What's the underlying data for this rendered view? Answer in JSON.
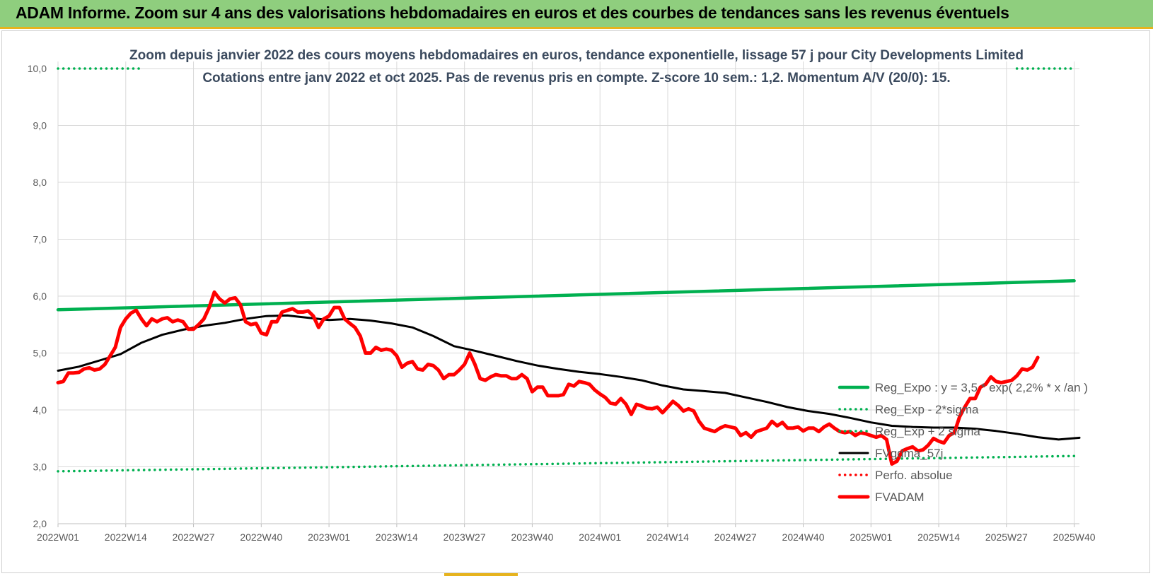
{
  "header": {
    "title": "ADAM Informe. Zoom sur 4 ans des valorisations hebdomadaires en euros et des courbes de tendances sans les revenus éventuels"
  },
  "colors": {
    "header_bg": "#8fce7e",
    "accent_border": "#e6b31e",
    "reg_expo": "#00b050",
    "sigma": "#00b050",
    "fvgdma": "#000000",
    "perfo": "#ff0000",
    "fvadam": "#ff0000"
  },
  "chart_data": {
    "type": "line",
    "title": "Zoom depuis janvier 2022 des cours moyens hebdomadaires en euros, tendance exponentielle, lissage 57 j pour City Developments Limited",
    "subtitle": "Cotations entre janv 2022 et oct 2025. Pas de revenus pris en compte. Z-score 10 sem.: 1,2. Momentum A/V (20/0): 15.",
    "xlabel": "",
    "ylabel": "",
    "ylim": [
      2,
      10
    ],
    "yticks": [
      "2,0",
      "3,0",
      "4,0",
      "5,0",
      "6,0",
      "7,0",
      "8,0",
      "9,0",
      "10,0"
    ],
    "x_tick_labels": [
      "2022W01",
      "2022W14",
      "2022W27",
      "2022W40",
      "2023W01",
      "2023W14",
      "2023W27",
      "2023W40",
      "2024W01",
      "2024W14",
      "2024W27",
      "2024W40",
      "2025W01",
      "2025W14",
      "2025W27",
      "2025W40"
    ],
    "weeks_total": 196,
    "grid": true,
    "legend_position": "bottom-right",
    "series": [
      {
        "name": "Reg_Expo : y = 3,5 * exp( 2,2% * x /an )",
        "style": "solid-thick",
        "color": "#00b050",
        "points": [
          [
            0,
            5.76
          ],
          [
            195,
            6.27
          ]
        ]
      },
      {
        "name": "Reg_Exp - 2*sigma",
        "style": "dotted",
        "color": "#00b050",
        "points": [
          [
            0,
            2.92
          ],
          [
            195,
            3.19
          ]
        ]
      },
      {
        "name": "Reg_Exp + 2 sigma",
        "style": "dotted",
        "color": "#00b050",
        "points": [
          [
            0,
            10.0
          ],
          [
            16,
            10.0
          ]
        ],
        "points2": [
          [
            184,
            10.0
          ],
          [
            195,
            10.0
          ]
        ]
      },
      {
        "name": "FVgdma_57j",
        "style": "solid",
        "color": "#000000",
        "points": [
          [
            0,
            4.69
          ],
          [
            4,
            4.76
          ],
          [
            8,
            4.87
          ],
          [
            12,
            4.98
          ],
          [
            16,
            5.18
          ],
          [
            20,
            5.32
          ],
          [
            24,
            5.41
          ],
          [
            28,
            5.48
          ],
          [
            32,
            5.53
          ],
          [
            36,
            5.6
          ],
          [
            40,
            5.65
          ],
          [
            44,
            5.66
          ],
          [
            48,
            5.62
          ],
          [
            52,
            5.58
          ],
          [
            56,
            5.6
          ],
          [
            60,
            5.57
          ],
          [
            64,
            5.52
          ],
          [
            68,
            5.45
          ],
          [
            72,
            5.3
          ],
          [
            76,
            5.12
          ],
          [
            80,
            5.04
          ],
          [
            84,
            4.95
          ],
          [
            88,
            4.86
          ],
          [
            92,
            4.78
          ],
          [
            96,
            4.72
          ],
          [
            100,
            4.67
          ],
          [
            104,
            4.63
          ],
          [
            108,
            4.58
          ],
          [
            112,
            4.52
          ],
          [
            116,
            4.43
          ],
          [
            120,
            4.36
          ],
          [
            124,
            4.33
          ],
          [
            128,
            4.3
          ],
          [
            132,
            4.22
          ],
          [
            136,
            4.14
          ],
          [
            140,
            4.05
          ],
          [
            144,
            3.98
          ],
          [
            148,
            3.93
          ],
          [
            152,
            3.86
          ],
          [
            156,
            3.78
          ],
          [
            160,
            3.72
          ],
          [
            164,
            3.7
          ],
          [
            168,
            3.69
          ],
          [
            172,
            3.69
          ],
          [
            176,
            3.67
          ],
          [
            180,
            3.63
          ],
          [
            184,
            3.58
          ],
          [
            188,
            3.52
          ],
          [
            192,
            3.48
          ],
          [
            196,
            3.51
          ]
        ]
      },
      {
        "name": "Perfo. absolue",
        "style": "dotted",
        "color": "#ff0000",
        "points": []
      },
      {
        "name": "FVADAM",
        "style": "solid-thick",
        "color": "#ff0000",
        "points": [
          [
            0,
            4.48
          ],
          [
            1,
            4.5
          ],
          [
            2,
            4.65
          ],
          [
            3,
            4.65
          ],
          [
            4,
            4.66
          ],
          [
            5,
            4.72
          ],
          [
            6,
            4.74
          ],
          [
            7,
            4.7
          ],
          [
            8,
            4.72
          ],
          [
            9,
            4.8
          ],
          [
            10,
            4.95
          ],
          [
            11,
            5.1
          ],
          [
            12,
            5.45
          ],
          [
            13,
            5.6
          ],
          [
            14,
            5.7
          ],
          [
            15,
            5.75
          ],
          [
            16,
            5.6
          ],
          [
            17,
            5.48
          ],
          [
            18,
            5.6
          ],
          [
            19,
            5.55
          ],
          [
            20,
            5.6
          ],
          [
            21,
            5.62
          ],
          [
            22,
            5.55
          ],
          [
            23,
            5.58
          ],
          [
            24,
            5.55
          ],
          [
            25,
            5.42
          ],
          [
            26,
            5.42
          ],
          [
            27,
            5.5
          ],
          [
            28,
            5.6
          ],
          [
            29,
            5.8
          ],
          [
            30,
            6.07
          ],
          [
            31,
            5.95
          ],
          [
            32,
            5.88
          ],
          [
            33,
            5.95
          ],
          [
            34,
            5.97
          ],
          [
            35,
            5.85
          ],
          [
            36,
            5.55
          ],
          [
            37,
            5.5
          ],
          [
            38,
            5.52
          ],
          [
            39,
            5.35
          ],
          [
            40,
            5.32
          ],
          [
            41,
            5.55
          ],
          [
            42,
            5.55
          ],
          [
            43,
            5.72
          ],
          [
            44,
            5.75
          ],
          [
            45,
            5.78
          ],
          [
            46,
            5.72
          ],
          [
            47,
            5.72
          ],
          [
            48,
            5.74
          ],
          [
            49,
            5.65
          ],
          [
            50,
            5.45
          ],
          [
            51,
            5.6
          ],
          [
            52,
            5.65
          ],
          [
            53,
            5.8
          ],
          [
            54,
            5.8
          ],
          [
            55,
            5.6
          ],
          [
            56,
            5.52
          ],
          [
            57,
            5.45
          ],
          [
            58,
            5.3
          ],
          [
            59,
            5.0
          ],
          [
            60,
            5.0
          ],
          [
            61,
            5.1
          ],
          [
            62,
            5.05
          ],
          [
            63,
            5.07
          ],
          [
            64,
            5.05
          ],
          [
            65,
            4.95
          ],
          [
            66,
            4.75
          ],
          [
            67,
            4.82
          ],
          [
            68,
            4.85
          ],
          [
            69,
            4.72
          ],
          [
            70,
            4.7
          ],
          [
            71,
            4.8
          ],
          [
            72,
            4.78
          ],
          [
            73,
            4.7
          ],
          [
            74,
            4.55
          ],
          [
            75,
            4.62
          ],
          [
            76,
            4.62
          ],
          [
            77,
            4.7
          ],
          [
            78,
            4.8
          ],
          [
            79,
            5.0
          ],
          [
            80,
            4.8
          ],
          [
            81,
            4.55
          ],
          [
            82,
            4.52
          ],
          [
            83,
            4.58
          ],
          [
            84,
            4.62
          ],
          [
            85,
            4.6
          ],
          [
            86,
            4.6
          ],
          [
            87,
            4.55
          ],
          [
            88,
            4.55
          ],
          [
            89,
            4.62
          ],
          [
            90,
            4.55
          ],
          [
            91,
            4.32
          ],
          [
            92,
            4.4
          ],
          [
            93,
            4.4
          ],
          [
            94,
            4.25
          ],
          [
            95,
            4.25
          ],
          [
            96,
            4.25
          ],
          [
            97,
            4.27
          ],
          [
            98,
            4.45
          ],
          [
            99,
            4.42
          ],
          [
            100,
            4.5
          ],
          [
            101,
            4.48
          ],
          [
            102,
            4.45
          ],
          [
            103,
            4.35
          ],
          [
            104,
            4.28
          ],
          [
            105,
            4.22
          ],
          [
            106,
            4.12
          ],
          [
            107,
            4.1
          ],
          [
            108,
            4.2
          ],
          [
            109,
            4.1
          ],
          [
            110,
            3.92
          ],
          [
            111,
            4.1
          ],
          [
            112,
            4.07
          ],
          [
            113,
            4.03
          ],
          [
            114,
            4.02
          ],
          [
            115,
            4.05
          ],
          [
            116,
            3.95
          ],
          [
            117,
            4.05
          ],
          [
            118,
            4.15
          ],
          [
            119,
            4.08
          ],
          [
            120,
            3.98
          ],
          [
            121,
            4.02
          ],
          [
            122,
            3.98
          ],
          [
            123,
            3.8
          ],
          [
            124,
            3.68
          ],
          [
            125,
            3.65
          ],
          [
            126,
            3.62
          ],
          [
            127,
            3.68
          ],
          [
            128,
            3.72
          ],
          [
            129,
            3.7
          ],
          [
            130,
            3.68
          ],
          [
            131,
            3.55
          ],
          [
            132,
            3.6
          ],
          [
            133,
            3.52
          ],
          [
            134,
            3.62
          ],
          [
            135,
            3.65
          ],
          [
            136,
            3.68
          ],
          [
            137,
            3.8
          ],
          [
            138,
            3.72
          ],
          [
            139,
            3.78
          ],
          [
            140,
            3.68
          ],
          [
            141,
            3.68
          ],
          [
            142,
            3.7
          ],
          [
            143,
            3.63
          ],
          [
            144,
            3.68
          ],
          [
            145,
            3.68
          ],
          [
            146,
            3.62
          ],
          [
            147,
            3.7
          ],
          [
            148,
            3.75
          ],
          [
            149,
            3.68
          ],
          [
            150,
            3.62
          ],
          [
            151,
            3.6
          ],
          [
            152,
            3.62
          ],
          [
            153,
            3.55
          ],
          [
            154,
            3.6
          ],
          [
            155,
            3.58
          ],
          [
            156,
            3.55
          ],
          [
            157,
            3.52
          ],
          [
            158,
            3.55
          ],
          [
            159,
            3.48
          ],
          [
            160,
            3.05
          ],
          [
            161,
            3.1
          ],
          [
            162,
            3.28
          ],
          [
            163,
            3.32
          ],
          [
            164,
            3.35
          ],
          [
            165,
            3.28
          ],
          [
            166,
            3.3
          ],
          [
            167,
            3.38
          ],
          [
            168,
            3.5
          ],
          [
            169,
            3.45
          ],
          [
            170,
            3.42
          ],
          [
            171,
            3.55
          ],
          [
            172,
            3.6
          ],
          [
            173,
            3.88
          ],
          [
            174,
            4.05
          ],
          [
            175,
            4.2
          ],
          [
            176,
            4.2
          ],
          [
            177,
            4.4
          ],
          [
            178,
            4.45
          ],
          [
            179,
            4.58
          ],
          [
            180,
            4.5
          ],
          [
            181,
            4.48
          ],
          [
            182,
            4.5
          ],
          [
            183,
            4.52
          ],
          [
            184,
            4.6
          ],
          [
            185,
            4.72
          ],
          [
            186,
            4.7
          ],
          [
            187,
            4.75
          ],
          [
            188,
            4.92
          ]
        ]
      }
    ]
  }
}
